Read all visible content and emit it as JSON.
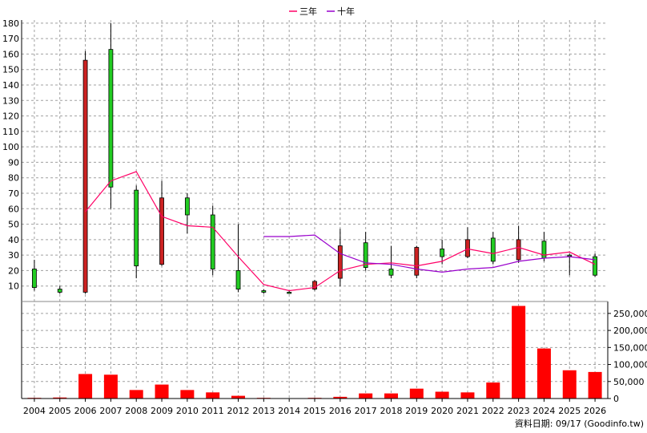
{
  "chart_data": {
    "type": "candlestick+bar",
    "legend": {
      "placement": "top-center",
      "items": [
        {
          "name": "三年",
          "color": "#ff0066"
        },
        {
          "name": "十年",
          "color": "#9900cc"
        }
      ]
    },
    "years": [
      "2004",
      "2005",
      "2006",
      "2007",
      "2008",
      "2009",
      "2010",
      "2011",
      "2012",
      "2013",
      "2014",
      "2015",
      "2016",
      "2017",
      "2018",
      "2019",
      "2020",
      "2021",
      "2022",
      "2023",
      "2024",
      "2025",
      "2026"
    ],
    "price_axis": {
      "ylim": [
        0,
        182
      ],
      "ticks": [
        10,
        20,
        30,
        40,
        50,
        60,
        70,
        80,
        90,
        100,
        110,
        120,
        130,
        140,
        150,
        160,
        170,
        180
      ]
    },
    "volume_axis": {
      "ylim": [
        0,
        285000
      ],
      "ticks": [
        0,
        50000,
        100000,
        150000,
        200000,
        250000
      ],
      "tick_labels": [
        "0",
        "50,000",
        "100,000",
        "150,000",
        "200,000",
        "250,000"
      ]
    },
    "candles": [
      {
        "open": 9,
        "high": 27,
        "low": 7,
        "close": 21
      },
      {
        "open": 6,
        "high": 10,
        "low": 5,
        "close": 8
      },
      {
        "open": 156,
        "high": 162,
        "low": 5,
        "close": 6
      },
      {
        "open": 74,
        "high": 180,
        "low": 60,
        "close": 163
      },
      {
        "open": 23,
        "high": 75,
        "low": 15,
        "close": 72
      },
      {
        "open": 67,
        "high": 78,
        "low": 23,
        "close": 24
      },
      {
        "open": 56,
        "high": 70,
        "low": 44,
        "close": 67
      },
      {
        "open": 21,
        "high": 62,
        "low": 17,
        "close": 56
      },
      {
        "open": 8,
        "high": 50,
        "low": 6,
        "close": 20
      },
      {
        "open": 6,
        "high": 8,
        "low": 5,
        "close": 7
      },
      {
        "open": 6,
        "high": 7,
        "low": 5,
        "close": 6
      },
      {
        "open": 13,
        "high": 14,
        "low": 7,
        "close": 8
      },
      {
        "open": 36,
        "high": 47,
        "low": 10,
        "close": 15
      },
      {
        "open": 22,
        "high": 45,
        "low": 20,
        "close": 38
      },
      {
        "open": 17,
        "high": 36,
        "low": 15,
        "close": 21
      },
      {
        "open": 35,
        "high": 36,
        "low": 15,
        "close": 17
      },
      {
        "open": 29,
        "high": 40,
        "low": 24,
        "close": 34
      },
      {
        "open": 40,
        "high": 48,
        "low": 28,
        "close": 29
      },
      {
        "open": 26,
        "high": 45,
        "low": 24,
        "close": 41
      },
      {
        "open": 40,
        "high": 49,
        "low": 25,
        "close": 27
      },
      {
        "open": 28,
        "high": 45,
        "low": 26,
        "close": 39
      },
      {
        "open": 30,
        "high": 31,
        "low": 17,
        "close": 30
      },
      {
        "open": 17,
        "high": 31,
        "low": 16,
        "close": 29
      }
    ],
    "series": [
      {
        "name": "三年",
        "color": "#ff0066",
        "values": [
          null,
          null,
          58,
          78,
          84,
          55,
          49,
          48,
          29,
          11,
          7,
          9,
          20,
          24,
          25,
          23,
          26,
          34,
          31,
          35,
          30,
          32,
          24
        ]
      },
      {
        "name": "十年",
        "color": "#9900cc",
        "values": [
          null,
          null,
          null,
          null,
          null,
          null,
          null,
          null,
          null,
          42,
          42,
          43,
          31,
          25,
          24,
          21,
          19,
          21,
          22,
          26,
          28,
          29,
          27
        ]
      }
    ],
    "volume": [
      2000,
      3000,
      72000,
      70000,
      25000,
      41000,
      25000,
      18000,
      8000,
      2000,
      500,
      2000,
      5000,
      15000,
      15000,
      29000,
      20000,
      18000,
      47000,
      272000,
      147000,
      83000,
      78000
    ],
    "volume_color": "#ff0000",
    "up_color": "#22cc22",
    "down_color": "#cc2222",
    "footer": "資料日期: 09/17  (Goodinfo.tw)"
  }
}
